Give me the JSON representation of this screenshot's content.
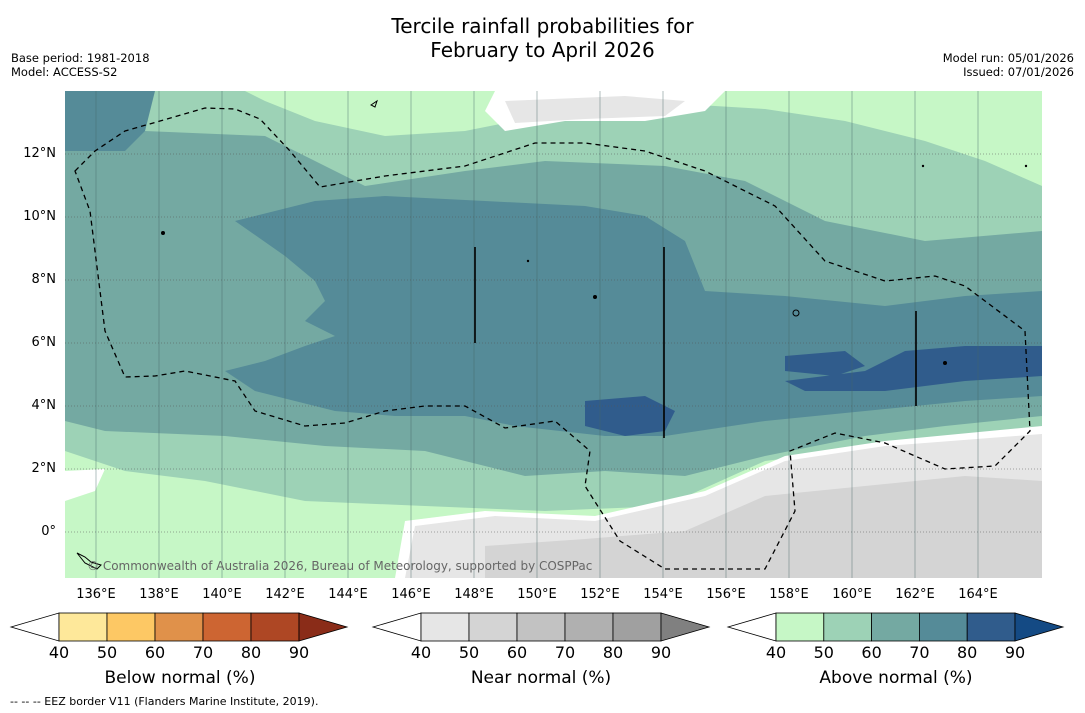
{
  "title_line1": "Tercile rainfall probabilities for",
  "title_line2": "February to April 2026",
  "base_period": "Base period: 1981-2018",
  "model": "Model: ACCESS-S2",
  "model_run": "Model run: 05/01/2026",
  "issued": "Issued: 07/01/2026",
  "lat_labels": [
    "12°N",
    "10°N",
    "8°N",
    "6°N",
    "4°N",
    "2°N",
    "0°"
  ],
  "lon_labels": [
    "136°E",
    "138°E",
    "140°E",
    "142°E",
    "144°E",
    "146°E",
    "148°E",
    "150°E",
    "152°E",
    "154°E",
    "156°E",
    "158°E",
    "160°E",
    "162°E",
    "164°E"
  ],
  "credit": "© Commonwealth of Australia 2026, Bureau of Meteorology, supported by COSPPac",
  "colorbars": [
    {
      "name": "Below normal (%)",
      "ticks": [
        "40",
        "50",
        "60",
        "70",
        "80",
        "90"
      ],
      "colors": [
        "#ffffff",
        "#fee89a",
        "#fdc864",
        "#e0914a",
        "#cd6532",
        "#ae4724",
        "#8a2c18"
      ]
    },
    {
      "name": "Near normal (%)",
      "ticks": [
        "40",
        "50",
        "60",
        "70",
        "80",
        "90"
      ],
      "colors": [
        "#ffffff",
        "#e6e6e6",
        "#d4d4d4",
        "#c2c2c2",
        "#b0b0b0",
        "#a0a0a0",
        "#808080"
      ]
    },
    {
      "name": "Above normal (%)",
      "ticks": [
        "40",
        "50",
        "60",
        "70",
        "80",
        "90"
      ],
      "colors": [
        "#ffffff",
        "#c6f7c6",
        "#9dd2b6",
        "#74a9a2",
        "#558b98",
        "#305c8c",
        "#144a84"
      ]
    }
  ],
  "footnote": "--  --  -- EEZ border V11 (Flanders Marine Institute, 2019)."
}
